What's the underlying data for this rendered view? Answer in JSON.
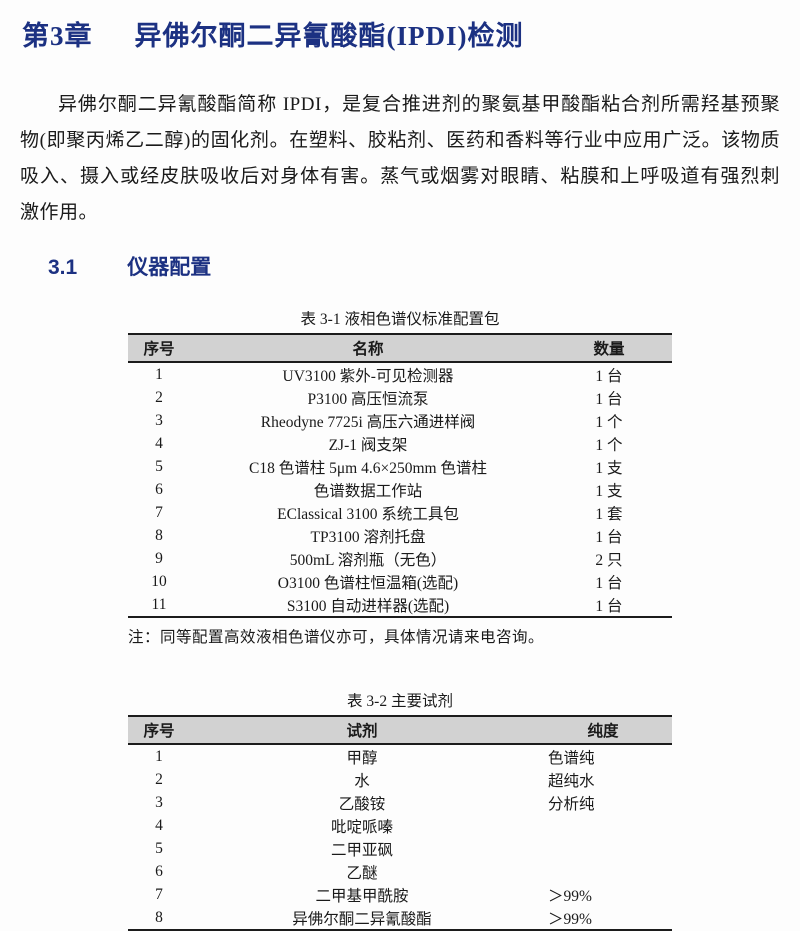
{
  "document": {
    "chapter": {
      "number": "第3章",
      "title": "异佛尔酮二异氰酸酯(IPDI)检测"
    },
    "intro_paragraph": "异佛尔酮二异氰酸酯简称 IPDI，是复合推进剂的聚氨基甲酸酯粘合剂所需羟基预聚物(即聚丙烯乙二醇)的固化剂。在塑料、胶粘剂、医药和香料等行业中应用广泛。该物质吸入、摄入或经皮肤吸收后对身体有害。蒸气或烟雾对眼睛、粘膜和上呼吸道有强烈刺激作用。",
    "section": {
      "number": "3.1",
      "title": "仪器配置"
    }
  },
  "table1": {
    "caption": "表 3-1  液相色谱仪标准配置包",
    "headers": [
      "序号",
      "名称",
      "数量"
    ],
    "rows": [
      [
        "1",
        "UV3100 紫外-可见检测器",
        "1 台"
      ],
      [
        "2",
        "P3100 高压恒流泵",
        "1 台"
      ],
      [
        "3",
        "Rheodyne 7725i  高压六通进样阀",
        "1 个"
      ],
      [
        "4",
        "ZJ-1 阀支架",
        "1 个"
      ],
      [
        "5",
        "C18 色谱柱  5μm 4.6×250mm 色谱柱",
        "1 支"
      ],
      [
        "6",
        "色谱数据工作站",
        "1 支"
      ],
      [
        "7",
        "EClassical 3100 系统工具包",
        "1 套"
      ],
      [
        "8",
        "TP3100 溶剂托盘",
        "1 台"
      ],
      [
        "9",
        "500mL 溶剂瓶（无色）",
        "2 只"
      ],
      [
        "10",
        "O3100 色谱柱恒温箱(选配)",
        "1 台"
      ],
      [
        "11",
        "S3100 自动进样器(选配)",
        "1 台"
      ]
    ],
    "note": "注：同等配置高效液相色谱仪亦可，具体情况请来电咨询。"
  },
  "table2": {
    "caption": "表 3-2  主要试剂",
    "headers": [
      "序号",
      "试剂",
      "纯度"
    ],
    "rows": [
      [
        "1",
        "甲醇",
        "色谱纯"
      ],
      [
        "2",
        "水",
        "超纯水"
      ],
      [
        "3",
        "乙酸铵",
        "分析纯"
      ],
      [
        "4",
        "吡啶哌嗪",
        ""
      ],
      [
        "5",
        "二甲亚砜",
        ""
      ],
      [
        "6",
        "乙醚",
        ""
      ],
      [
        "7",
        "二甲基甲酰胺",
        "＞99%"
      ],
      [
        "8",
        "异佛尔酮二异氰酸酯",
        "＞99%"
      ]
    ]
  },
  "colors": {
    "heading_blue": "#1c3182",
    "table_header_gray": "#d2d2d2",
    "rule_black": "#1c1c1c",
    "page_background": "#fdfdfd"
  }
}
